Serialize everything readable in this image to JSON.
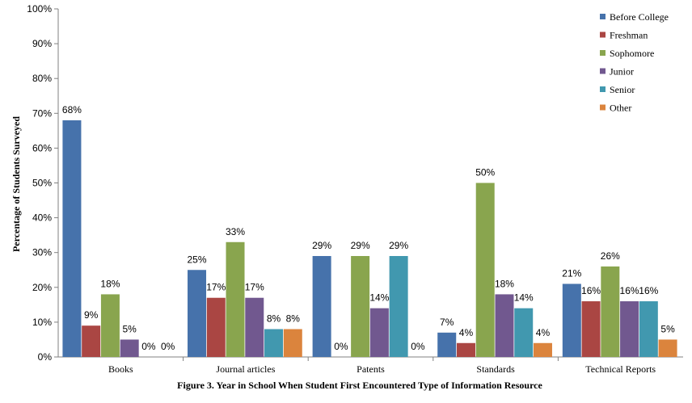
{
  "chart_data": {
    "type": "bar",
    "ylabel": "Percentage of Students Surveyed",
    "xlabel": "",
    "caption": "Figure 3. Year in School When Student First Encountered Type of Information Resource",
    "ylim": [
      0,
      100
    ],
    "yticks": [
      "0%",
      "10%",
      "20%",
      "30%",
      "40%",
      "50%",
      "60%",
      "70%",
      "80%",
      "90%",
      "100%"
    ],
    "categories": [
      "Books",
      "Journal articles",
      "Patents",
      "Standards",
      "Technical Reports"
    ],
    "legend_position": "top-right",
    "series": [
      {
        "name": "Before College",
        "color": "#4672AB",
        "values": [
          68,
          25,
          29,
          7,
          21
        ],
        "labels": [
          "68%",
          "25%",
          "29%",
          "7%",
          "21%"
        ]
      },
      {
        "name": "Freshman",
        "color": "#AA4643",
        "values": [
          9,
          17,
          0,
          4,
          16
        ],
        "labels": [
          "9%",
          "17%",
          "0%",
          "4%",
          "16%"
        ]
      },
      {
        "name": "Sophomore",
        "color": "#89A54E",
        "values": [
          18,
          33,
          29,
          50,
          26
        ],
        "labels": [
          "18%",
          "33%",
          "29%",
          "50%",
          "26%"
        ]
      },
      {
        "name": "Junior",
        "color": "#71588F",
        "values": [
          5,
          17,
          14,
          18,
          16
        ],
        "labels": [
          "5%",
          "17%",
          "14%",
          "18%",
          "16%"
        ]
      },
      {
        "name": "Senior",
        "color": "#4198AF",
        "values": [
          0,
          8,
          29,
          14,
          16
        ],
        "labels": [
          "0%",
          "8%",
          "29%",
          "14%",
          "16%"
        ]
      },
      {
        "name": "Other",
        "color": "#DB843D",
        "values": [
          0,
          8,
          0,
          4,
          5
        ],
        "labels": [
          "0%",
          "8%",
          "0%",
          "4%",
          "5%"
        ]
      }
    ]
  }
}
